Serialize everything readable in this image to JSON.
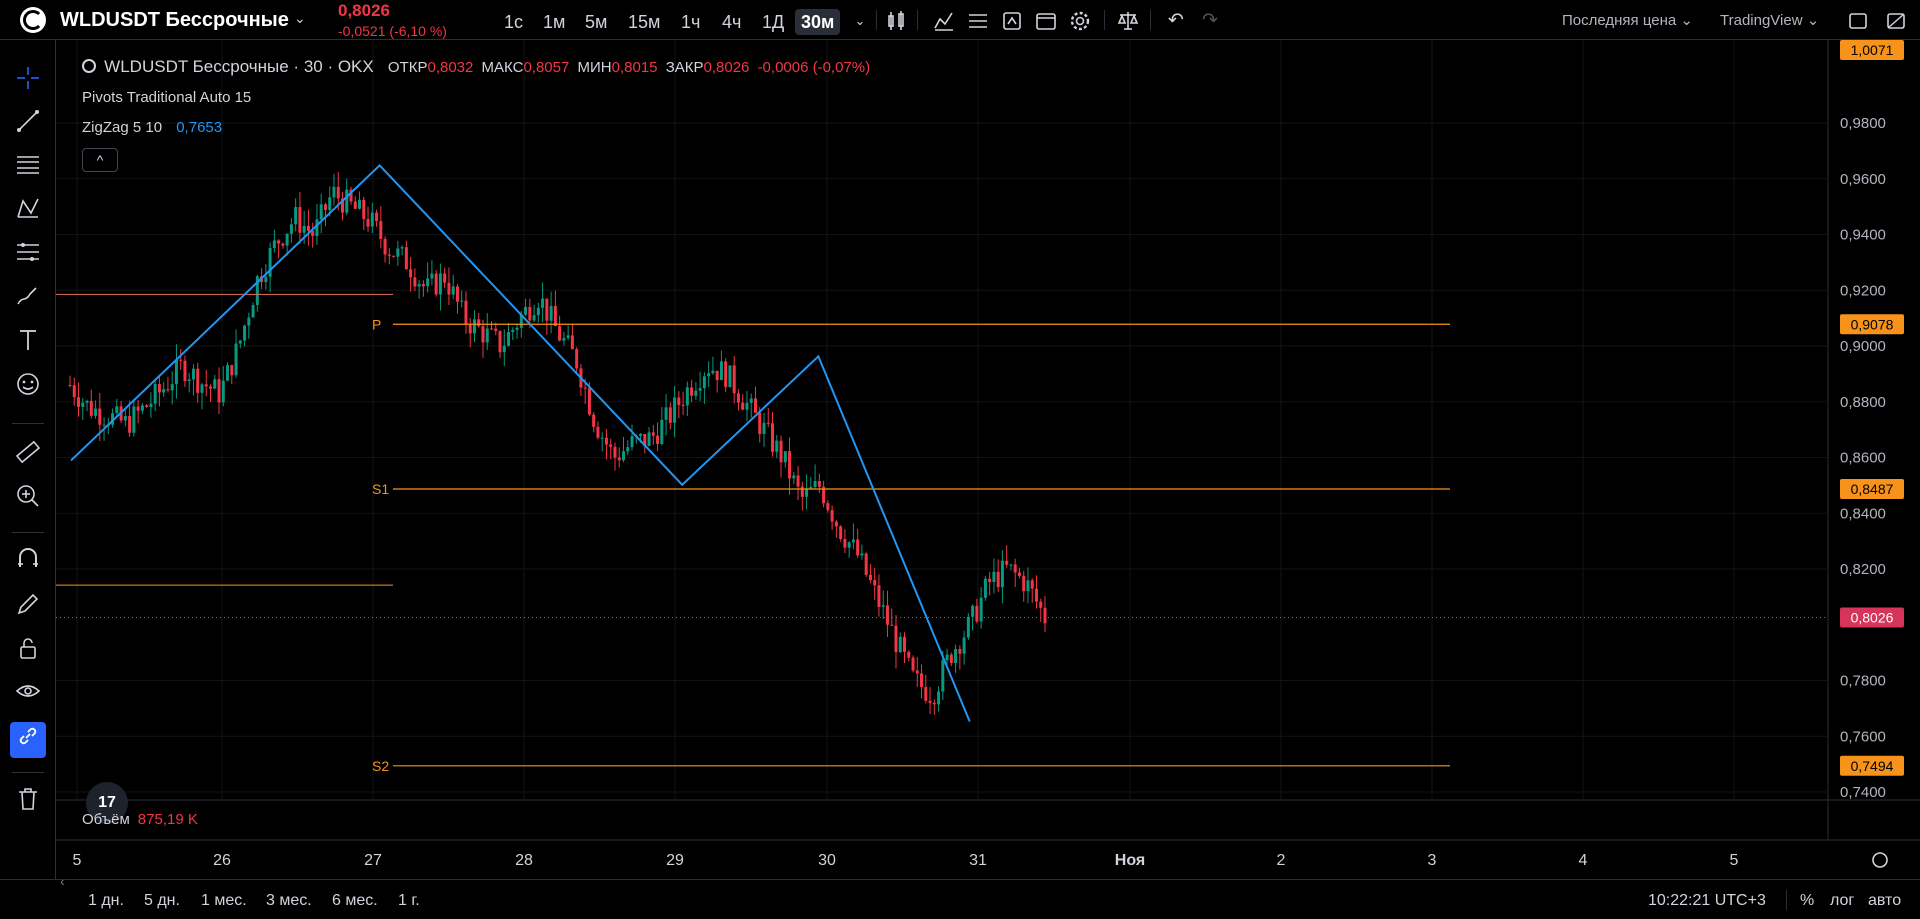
{
  "header": {
    "symbol": "WLDUSDT Бессрочные",
    "price": "0,8026",
    "change": "-0,0521 (-6,10 %)",
    "timeframes": [
      "1с",
      "1м",
      "5м",
      "15м",
      "1ч",
      "4ч",
      "1Д",
      "30м"
    ],
    "active_timeframe": "30м",
    "price_type": "Последняя цена",
    "broker": "TradingView"
  },
  "legend": {
    "title": "WLDUSDT Бессрочные · 30 · OKX",
    "open_label": "ОТКР",
    "open": "0,8032",
    "high_label": "МАКС",
    "high": "0,8057",
    "low_label": "МИН",
    "low": "0,8015",
    "close_label": "ЗАКР",
    "close": "0,8026",
    "delta": "-0,0006 (-0,07%)",
    "pivots": "Pivots Traditional Auto 15",
    "zigzag": "ZigZag 5 10",
    "zigzag_value": "0,7653",
    "collapse_glyph": "^"
  },
  "volume": {
    "label": "Объём",
    "value": "875,19 K"
  },
  "chart_data": {
    "type": "candlestick",
    "y_ticks": [
      "0,9800",
      "0,9600",
      "0,9400",
      "0,9200",
      "0,9000",
      "0,8800",
      "0,8600",
      "0,8400",
      "0,8200",
      "0,7800",
      "0,7600",
      "0,7400"
    ],
    "x_ticks": [
      "5",
      "26",
      "27",
      "28",
      "29",
      "30",
      "31",
      "Ноя",
      "2",
      "3",
      "4",
      "5"
    ],
    "ylim": [
      0.74,
      1.0071
    ],
    "pivots": [
      {
        "name": "P",
        "value": 0.9078,
        "label": "0,9078"
      },
      {
        "name": "S1",
        "value": 0.8487,
        "label": "0,8487"
      },
      {
        "name": "S2",
        "value": 0.7494,
        "label": "0,7494"
      }
    ],
    "top_label": "1,0071",
    "last_price_label": "0,8026",
    "zigzag": [
      {
        "x": "25.0",
        "y": 0.861
      },
      {
        "x": "27.0",
        "y": 0.9648
      },
      {
        "x": "29.0",
        "y": 0.8502
      },
      {
        "x": "29.9",
        "y": 0.8963
      },
      {
        "x": "30.9",
        "y": 0.7653
      }
    ],
    "candles_close": [
      0.886,
      0.878,
      0.875,
      0.872,
      0.878,
      0.885,
      0.893,
      0.887,
      0.883,
      0.9,
      0.924,
      0.937,
      0.946,
      0.94,
      0.955,
      0.95,
      0.945,
      0.935,
      0.93,
      0.92,
      0.925,
      0.91,
      0.905,
      0.9,
      0.91,
      0.918,
      0.905,
      0.895,
      0.873,
      0.86,
      0.865,
      0.867,
      0.875,
      0.885,
      0.893,
      0.89,
      0.88,
      0.87,
      0.86,
      0.845,
      0.85,
      0.835,
      0.825,
      0.81,
      0.795,
      0.78,
      0.775,
      0.79,
      0.8,
      0.815,
      0.82,
      0.815,
      0.8026
    ]
  },
  "bottom": {
    "ranges": [
      "1 дн.",
      "5 дн.",
      "1 мес.",
      "3 мес.",
      "6 мес.",
      "1 г."
    ],
    "time": "10:22:21 UTC+3",
    "percent": "%",
    "log": "лог",
    "auto": "авто"
  },
  "badge": "17",
  "colors": {
    "up": "#089981",
    "down": "#f23645",
    "zigzag": "#2196f3",
    "pivot": "#f7931a",
    "last": "#f23645"
  }
}
